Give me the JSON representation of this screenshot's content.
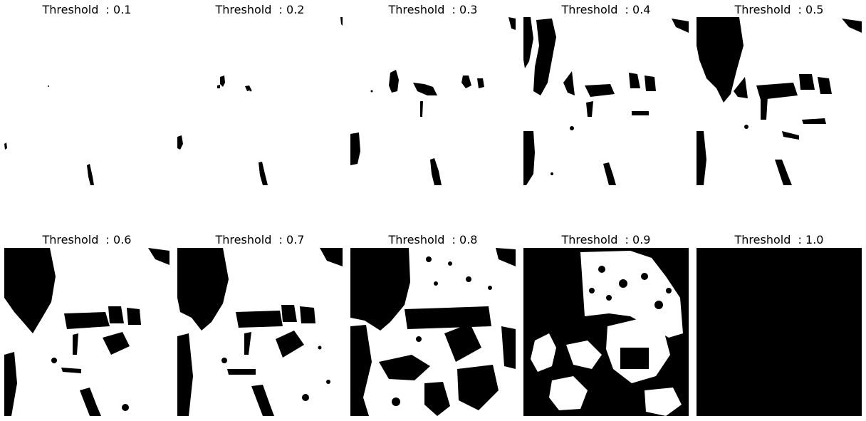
{
  "figure": {
    "panels": [
      {
        "title": "Threshold  : 0.1",
        "threshold": 0.1
      },
      {
        "title": "Threshold  : 0.2",
        "threshold": 0.2
      },
      {
        "title": "Threshold  : 0.3",
        "threshold": 0.3
      },
      {
        "title": "Threshold  : 0.4",
        "threshold": 0.4
      },
      {
        "title": "Threshold  : 0.5",
        "threshold": 0.5
      },
      {
        "title": "Threshold  : 0.6",
        "threshold": 0.6
      },
      {
        "title": "Threshold  : 0.7",
        "threshold": 0.7
      },
      {
        "title": "Threshold  : 0.8",
        "threshold": 0.8
      },
      {
        "title": "Threshold  : 0.9",
        "threshold": 0.9
      },
      {
        "title": "Threshold  : 1.0",
        "threshold": 1.0
      }
    ],
    "colors": {
      "foreground": "#000000",
      "background": "#ffffff"
    }
  }
}
